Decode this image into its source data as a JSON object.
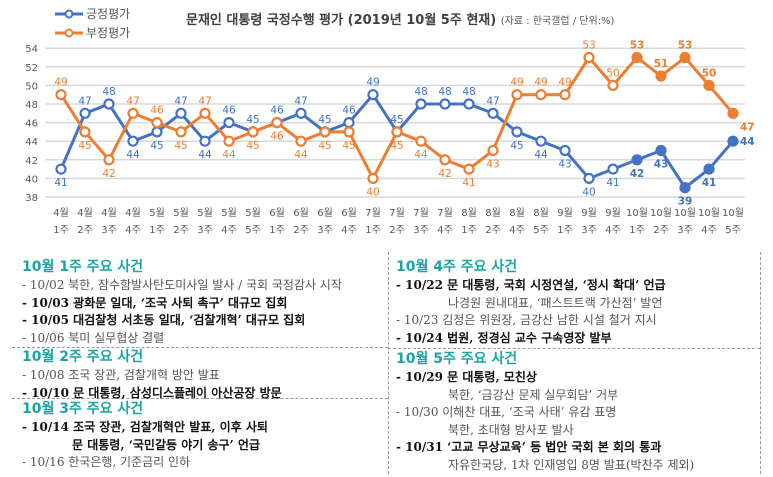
{
  "chart_data": {
    "type": "line",
    "title": "문재인 대통령 국정수행 평가 (2019년 10월 5주 현재)",
    "source_note": "(자료 : 한국갤럽 / 단위:%)",
    "categories": [
      [
        "4월",
        "1주"
      ],
      [
        "4월",
        "2주"
      ],
      [
        "4월",
        "3주"
      ],
      [
        "4월",
        "4주"
      ],
      [
        "5월",
        "1주"
      ],
      [
        "5월",
        "2주"
      ],
      [
        "5월",
        "3주"
      ],
      [
        "5월",
        "4주"
      ],
      [
        "5월",
        "5주"
      ],
      [
        "6월",
        "1주"
      ],
      [
        "6월",
        "2주"
      ],
      [
        "6월",
        "3주"
      ],
      [
        "6월",
        "4주"
      ],
      [
        "7월",
        "1주"
      ],
      [
        "7월",
        "2주"
      ],
      [
        "7월",
        "3주"
      ],
      [
        "7월",
        "4주"
      ],
      [
        "8월",
        "1주"
      ],
      [
        "8월",
        "2주"
      ],
      [
        "8월",
        "4주"
      ],
      [
        "8월",
        "5주"
      ],
      [
        "9월",
        "1주"
      ],
      [
        "9월",
        "3주"
      ],
      [
        "9월",
        "4주"
      ],
      [
        "10월",
        "1주"
      ],
      [
        "10월",
        "2주"
      ],
      [
        "10월",
        "3주"
      ],
      [
        "10월",
        "4주"
      ],
      [
        "10월",
        "5주"
      ]
    ],
    "series": [
      {
        "name": "긍정평가",
        "color": "#4472c4",
        "values": [
          41,
          47,
          48,
          44,
          45,
          47,
          44,
          46,
          45,
          46,
          47,
          45,
          46,
          49,
          45,
          48,
          48,
          48,
          47,
          45,
          44,
          43,
          40,
          41,
          42,
          43,
          39,
          41,
          44
        ]
      },
      {
        "name": "부정평가",
        "color": "#ed7d31",
        "values": [
          49,
          45,
          42,
          47,
          46,
          45,
          47,
          44,
          45,
          46,
          44,
          45,
          45,
          40,
          45,
          44,
          42,
          41,
          43,
          49,
          49,
          49,
          53,
          50,
          53,
          51,
          53,
          50,
          47
        ]
      }
    ],
    "emphasized_month": "10월",
    "yticks": [
      38,
      40,
      42,
      44,
      46,
      48,
      50,
      52,
      54
    ],
    "ylim": [
      38,
      54
    ],
    "grid": true,
    "legend": "top-left"
  },
  "events": {
    "left": [
      {
        "title": "10월 1주 주요 사건",
        "lines": [
          {
            "text": "- 10/02 북한, 잠수함발사탄도미사일 발사 / 국회 국정감사 시작",
            "bold": false
          },
          {
            "text": "- 10/03 광화문 일대, ‘조국 사퇴 촉구’ 대규모 집회",
            "bold": true
          },
          {
            "text": "- 10/05 대검찰청 서초동 일대, ‘검찰개혁’ 대규모 집회",
            "bold": true
          },
          {
            "text": "- 10/06 북미 실무협상 결렬",
            "bold": false
          }
        ]
      },
      {
        "title": "10월 2주 주요 사건",
        "lines": [
          {
            "text": "- 10/08 조국 장관, 검찰개혁 방안 발표",
            "bold": false
          },
          {
            "text": "- 10/10 문 대통령, 삼성디스플레이 아산공장 방문",
            "bold": true
          }
        ]
      },
      {
        "title": "10월 3주 주요 사건",
        "lines": [
          {
            "text": "- 10/14 조국 장관, 검찰개혁안 발표, 이후 사퇴",
            "bold": true
          },
          {
            "text": "문 대통령, ‘국민갈등 야기 송구’ 언급",
            "bold": true,
            "indent": true
          },
          {
            "text": "- 10/16 한국은행, 기준금리 인하",
            "bold": false
          }
        ]
      }
    ],
    "right": [
      {
        "title": "10월 4주 주요 사건",
        "lines": [
          {
            "text": "- 10/22 문 대통령, 국회 시정연설, ‘정시 확대’ 언급",
            "bold": true
          },
          {
            "text": "나경원 원내대표, ‘패스트트랙 가산점’ 발언",
            "bold": false,
            "indent": true
          },
          {
            "text": "- 10/23 김정은 위원장, 금강산 남한 시설 철거 지시",
            "bold": false
          },
          {
            "text": "- 10/24 법원, 정경심 교수 구속영장 발부",
            "bold": true
          }
        ]
      },
      {
        "title": "10월 5주 주요 사건",
        "lines": [
          {
            "text": "- 10/29 문 대통령, 모친상",
            "bold": true
          },
          {
            "text": "북한, ‘금강산 문제 실무회담’ 거부",
            "bold": false,
            "indent": true
          },
          {
            "text": "- 10/30 이해찬 대표, ‘조국 사태’ 유감 표명",
            "bold": false
          },
          {
            "text": "북한, 초대형 방사포 발사",
            "bold": false,
            "indent": true
          },
          {
            "text": "- 10/31 ‘고교 무상교육’ 등 법안 국회 본 회의 통과",
            "bold": true
          },
          {
            "text": "자유한국당, 1차 인재영입 8명 발표(박찬주 제외)",
            "bold": false,
            "indent": true
          }
        ]
      }
    ]
  }
}
